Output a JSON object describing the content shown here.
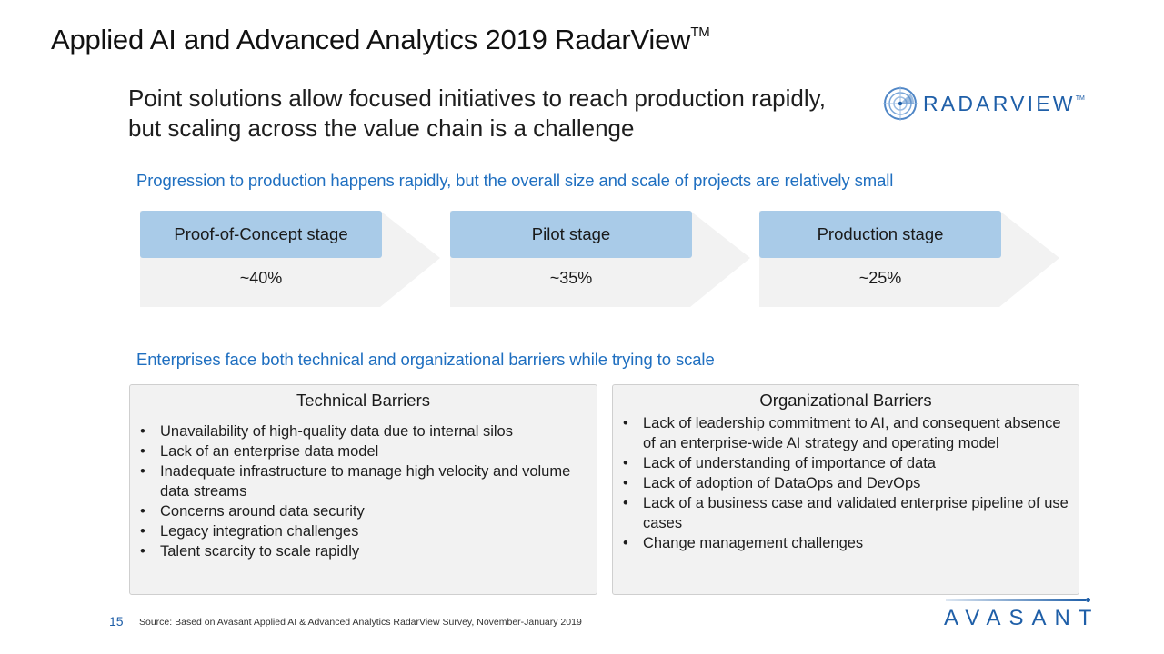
{
  "slide": {
    "title": "Applied AI and Advanced Analytics 2019 RadarView",
    "title_suffix": "TM",
    "headline": "Point solutions allow focused initiatives to reach production rapidly, but scaling across the value chain is a challenge",
    "logo": {
      "text": "RADARVIEW",
      "tm": "TM",
      "icon": "radar-icon"
    }
  },
  "progression": {
    "heading": "Progression to production happens rapidly, but the overall size and scale of projects are relatively small",
    "stages": [
      {
        "label": "Proof-of-Concept stage",
        "value": "~40%",
        "percent": 40
      },
      {
        "label": "Pilot stage",
        "value": "~35%",
        "percent": 35
      },
      {
        "label": "Production stage",
        "value": "~25%",
        "percent": 25
      }
    ]
  },
  "barriers": {
    "heading": "Enterprises face both technical and organizational barriers while trying to scale",
    "technical": {
      "title": "Technical Barriers",
      "items": [
        "Unavailability of high-quality data due to internal silos",
        "Lack of an enterprise data model",
        "Inadequate infrastructure to manage high velocity and volume data streams",
        "Concerns around data security",
        "Legacy integration challenges",
        "Talent scarcity to scale rapidly"
      ]
    },
    "organizational": {
      "title": "Organizational Barriers",
      "items": [
        "Lack of leadership commitment to AI, and consequent absence of an enterprise-wide AI strategy and operating model",
        "Lack of understanding of importance of data",
        "Lack of adoption of DataOps and DevOps",
        "Lack of a business case and validated enterprise pipeline of use cases",
        "Change management challenges"
      ]
    },
    "bullet": "•"
  },
  "footer": {
    "page_number": "15",
    "source": "Source: Based on Avasant Applied AI & Advanced Analytics RadarView Survey, November-January 2019",
    "brand": "AVASANT"
  },
  "colors": {
    "brand_blue": "#1f5fa8",
    "heading_blue": "#1f6fc0",
    "stage_label_bg": "#a9cbe8",
    "chevron_bg": "#f2f2f2",
    "box_bg": "#f2f2f2"
  }
}
